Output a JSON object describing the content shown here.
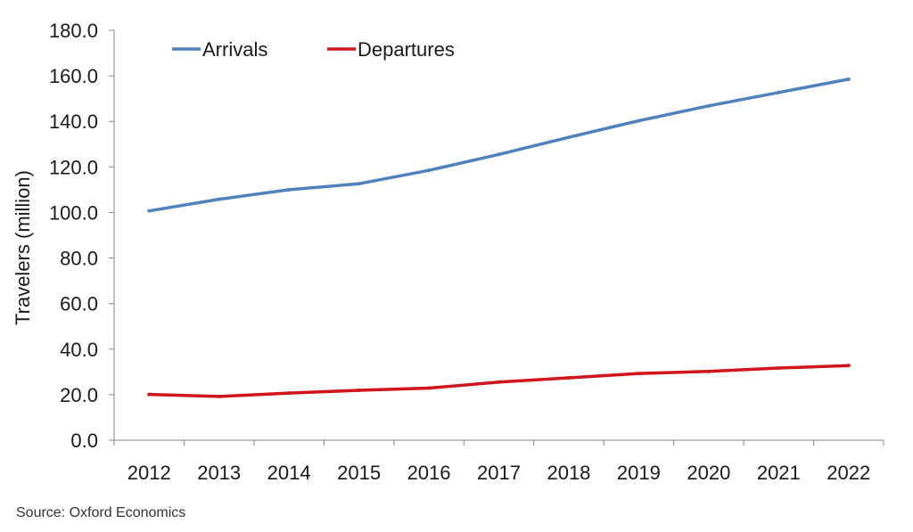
{
  "chart_data": {
    "type": "line",
    "title": "",
    "xlabel": "",
    "ylabel": "Travelers (million)",
    "categories": [
      "2012",
      "2013",
      "2014",
      "2015",
      "2016",
      "2017",
      "2018",
      "2019",
      "2020",
      "2021",
      "2022"
    ],
    "ylim": [
      0,
      180
    ],
    "yticks": [
      "0.0",
      "20.0",
      "40.0",
      "60.0",
      "80.0",
      "100.0",
      "120.0",
      "140.0",
      "160.0",
      "180.0"
    ],
    "grid": false,
    "legend_position": "top-left",
    "series": [
      {
        "name": "Arrivals",
        "color": "#4f81bd",
        "values": [
          100.7,
          105.8,
          110.0,
          112.6,
          118.5,
          125.5,
          133.0,
          140.3,
          146.8,
          152.7,
          158.5
        ]
      },
      {
        "name": "Departures",
        "color": "#d0161c",
        "values": [
          20.1,
          19.2,
          20.7,
          21.9,
          22.9,
          25.5,
          27.4,
          29.3,
          30.2,
          31.7,
          32.8
        ]
      }
    ]
  },
  "source": "Source: Oxford Economics"
}
